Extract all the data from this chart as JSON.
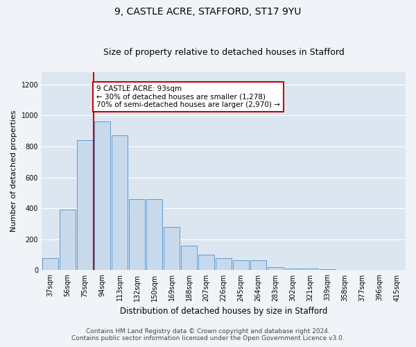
{
  "title": "9, CASTLE ACRE, STAFFORD, ST17 9YU",
  "subtitle": "Size of property relative to detached houses in Stafford",
  "xlabel": "Distribution of detached houses by size in Stafford",
  "ylabel": "Number of detached properties",
  "bar_color": "#c8d9ec",
  "bar_edge_color": "#5b9bd5",
  "background_color": "#dce6f1",
  "grid_color": "#ffffff",
  "fig_facecolor": "#f0f4f8",
  "annotation_box_color": "#cc0000",
  "vline_color": "#cc0000",
  "categories": [
    "37sqm",
    "56sqm",
    "75sqm",
    "94sqm",
    "113sqm",
    "132sqm",
    "150sqm",
    "169sqm",
    "188sqm",
    "207sqm",
    "226sqm",
    "245sqm",
    "264sqm",
    "283sqm",
    "302sqm",
    "321sqm",
    "339sqm",
    "358sqm",
    "377sqm",
    "396sqm",
    "415sqm"
  ],
  "values": [
    80,
    390,
    840,
    960,
    870,
    460,
    460,
    280,
    160,
    100,
    80,
    65,
    65,
    18,
    10,
    10,
    6,
    4,
    4,
    4,
    4
  ],
  "vline_index": 3,
  "annotation_text_line1": "9 CASTLE ACRE: 93sqm",
  "annotation_text_line2": "← 30% of detached houses are smaller (1,278)",
  "annotation_text_line3": "70% of semi-detached houses are larger (2,970) →",
  "ylim": [
    0,
    1280
  ],
  "yticks": [
    0,
    200,
    400,
    600,
    800,
    1000,
    1200
  ],
  "footer_line1": "Contains HM Land Registry data © Crown copyright and database right 2024.",
  "footer_line2": "Contains public sector information licensed under the Open Government Licence v3.0.",
  "title_fontsize": 10,
  "subtitle_fontsize": 9,
  "xlabel_fontsize": 8.5,
  "ylabel_fontsize": 8,
  "tick_fontsize": 7,
  "annotation_fontsize": 7.5,
  "footer_fontsize": 6.5
}
